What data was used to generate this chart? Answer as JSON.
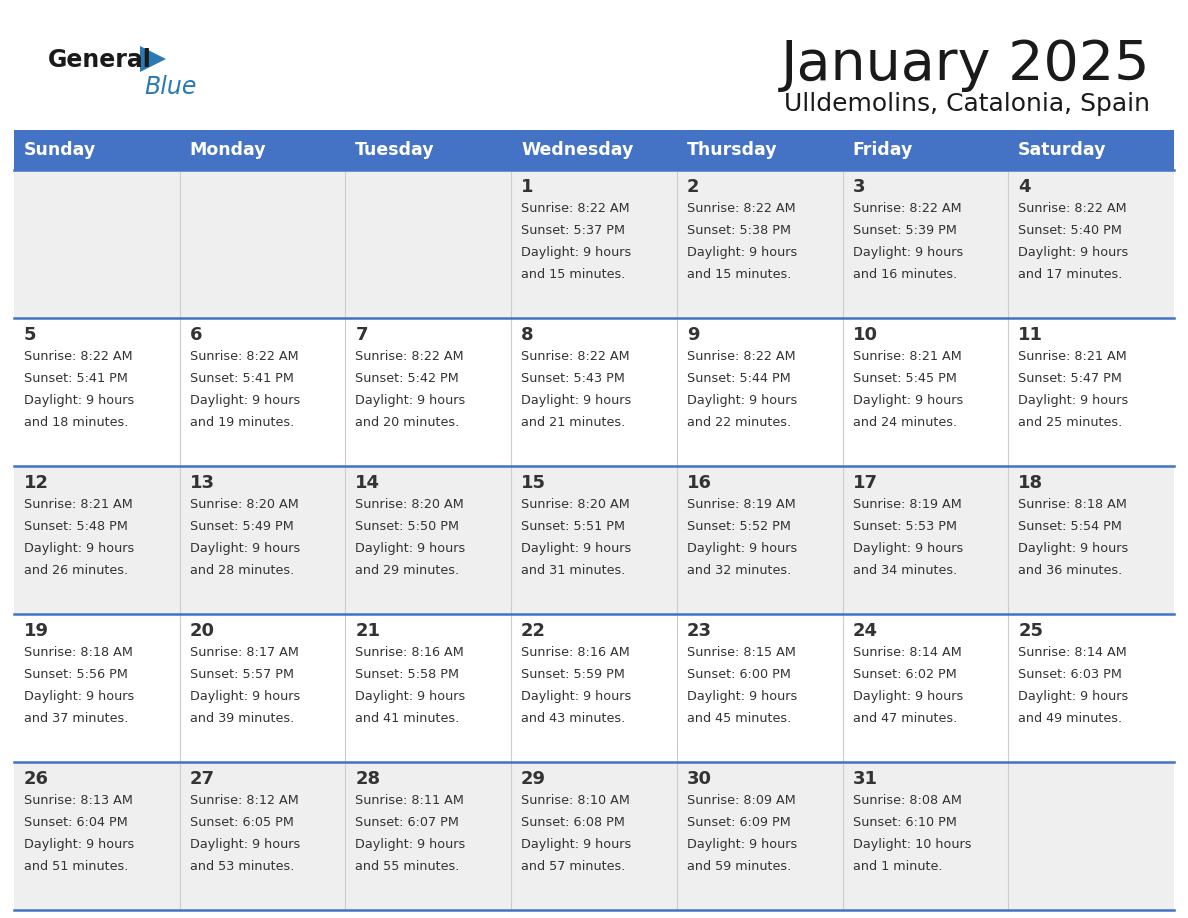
{
  "title": "January 2025",
  "subtitle": "Ulldemolins, Catalonia, Spain",
  "days_of_week": [
    "Sunday",
    "Monday",
    "Tuesday",
    "Wednesday",
    "Thursday",
    "Friday",
    "Saturday"
  ],
  "header_bg": "#4472C4",
  "header_text_color": "#FFFFFF",
  "cell_bg_light": "#EFEFEF",
  "cell_bg_white": "#FFFFFF",
  "cell_border_color": "#4472C4",
  "cell_line_color": "#CCCCCC",
  "text_color": "#333333",
  "logo_general_color": "#1a1a1a",
  "logo_blue_color": "#2979B5",
  "logo_triangle_color": "#2979B5",
  "calendar_data": [
    [
      null,
      null,
      null,
      {
        "day": 1,
        "sunrise": "8:22 AM",
        "sunset": "5:37 PM",
        "daylight_h": "9 hours",
        "daylight_m": "and 15 minutes."
      },
      {
        "day": 2,
        "sunrise": "8:22 AM",
        "sunset": "5:38 PM",
        "daylight_h": "9 hours",
        "daylight_m": "and 15 minutes."
      },
      {
        "day": 3,
        "sunrise": "8:22 AM",
        "sunset": "5:39 PM",
        "daylight_h": "9 hours",
        "daylight_m": "and 16 minutes."
      },
      {
        "day": 4,
        "sunrise": "8:22 AM",
        "sunset": "5:40 PM",
        "daylight_h": "9 hours",
        "daylight_m": "and 17 minutes."
      }
    ],
    [
      {
        "day": 5,
        "sunrise": "8:22 AM",
        "sunset": "5:41 PM",
        "daylight_h": "9 hours",
        "daylight_m": "and 18 minutes."
      },
      {
        "day": 6,
        "sunrise": "8:22 AM",
        "sunset": "5:41 PM",
        "daylight_h": "9 hours",
        "daylight_m": "and 19 minutes."
      },
      {
        "day": 7,
        "sunrise": "8:22 AM",
        "sunset": "5:42 PM",
        "daylight_h": "9 hours",
        "daylight_m": "and 20 minutes."
      },
      {
        "day": 8,
        "sunrise": "8:22 AM",
        "sunset": "5:43 PM",
        "daylight_h": "9 hours",
        "daylight_m": "and 21 minutes."
      },
      {
        "day": 9,
        "sunrise": "8:22 AM",
        "sunset": "5:44 PM",
        "daylight_h": "9 hours",
        "daylight_m": "and 22 minutes."
      },
      {
        "day": 10,
        "sunrise": "8:21 AM",
        "sunset": "5:45 PM",
        "daylight_h": "9 hours",
        "daylight_m": "and 24 minutes."
      },
      {
        "day": 11,
        "sunrise": "8:21 AM",
        "sunset": "5:47 PM",
        "daylight_h": "9 hours",
        "daylight_m": "and 25 minutes."
      }
    ],
    [
      {
        "day": 12,
        "sunrise": "8:21 AM",
        "sunset": "5:48 PM",
        "daylight_h": "9 hours",
        "daylight_m": "and 26 minutes."
      },
      {
        "day": 13,
        "sunrise": "8:20 AM",
        "sunset": "5:49 PM",
        "daylight_h": "9 hours",
        "daylight_m": "and 28 minutes."
      },
      {
        "day": 14,
        "sunrise": "8:20 AM",
        "sunset": "5:50 PM",
        "daylight_h": "9 hours",
        "daylight_m": "and 29 minutes."
      },
      {
        "day": 15,
        "sunrise": "8:20 AM",
        "sunset": "5:51 PM",
        "daylight_h": "9 hours",
        "daylight_m": "and 31 minutes."
      },
      {
        "day": 16,
        "sunrise": "8:19 AM",
        "sunset": "5:52 PM",
        "daylight_h": "9 hours",
        "daylight_m": "and 32 minutes."
      },
      {
        "day": 17,
        "sunrise": "8:19 AM",
        "sunset": "5:53 PM",
        "daylight_h": "9 hours",
        "daylight_m": "and 34 minutes."
      },
      {
        "day": 18,
        "sunrise": "8:18 AM",
        "sunset": "5:54 PM",
        "daylight_h": "9 hours",
        "daylight_m": "and 36 minutes."
      }
    ],
    [
      {
        "day": 19,
        "sunrise": "8:18 AM",
        "sunset": "5:56 PM",
        "daylight_h": "9 hours",
        "daylight_m": "and 37 minutes."
      },
      {
        "day": 20,
        "sunrise": "8:17 AM",
        "sunset": "5:57 PM",
        "daylight_h": "9 hours",
        "daylight_m": "and 39 minutes."
      },
      {
        "day": 21,
        "sunrise": "8:16 AM",
        "sunset": "5:58 PM",
        "daylight_h": "9 hours",
        "daylight_m": "and 41 minutes."
      },
      {
        "day": 22,
        "sunrise": "8:16 AM",
        "sunset": "5:59 PM",
        "daylight_h": "9 hours",
        "daylight_m": "and 43 minutes."
      },
      {
        "day": 23,
        "sunrise": "8:15 AM",
        "sunset": "6:00 PM",
        "daylight_h": "9 hours",
        "daylight_m": "and 45 minutes."
      },
      {
        "day": 24,
        "sunrise": "8:14 AM",
        "sunset": "6:02 PM",
        "daylight_h": "9 hours",
        "daylight_m": "and 47 minutes."
      },
      {
        "day": 25,
        "sunrise": "8:14 AM",
        "sunset": "6:03 PM",
        "daylight_h": "9 hours",
        "daylight_m": "and 49 minutes."
      }
    ],
    [
      {
        "day": 26,
        "sunrise": "8:13 AM",
        "sunset": "6:04 PM",
        "daylight_h": "9 hours",
        "daylight_m": "and 51 minutes."
      },
      {
        "day": 27,
        "sunrise": "8:12 AM",
        "sunset": "6:05 PM",
        "daylight_h": "9 hours",
        "daylight_m": "and 53 minutes."
      },
      {
        "day": 28,
        "sunrise": "8:11 AM",
        "sunset": "6:07 PM",
        "daylight_h": "9 hours",
        "daylight_m": "and 55 minutes."
      },
      {
        "day": 29,
        "sunrise": "8:10 AM",
        "sunset": "6:08 PM",
        "daylight_h": "9 hours",
        "daylight_m": "and 57 minutes."
      },
      {
        "day": 30,
        "sunrise": "8:09 AM",
        "sunset": "6:09 PM",
        "daylight_h": "9 hours",
        "daylight_m": "and 59 minutes."
      },
      {
        "day": 31,
        "sunrise": "8:08 AM",
        "sunset": "6:10 PM",
        "daylight_h": "10 hours",
        "daylight_m": "and 1 minute."
      },
      null
    ]
  ]
}
